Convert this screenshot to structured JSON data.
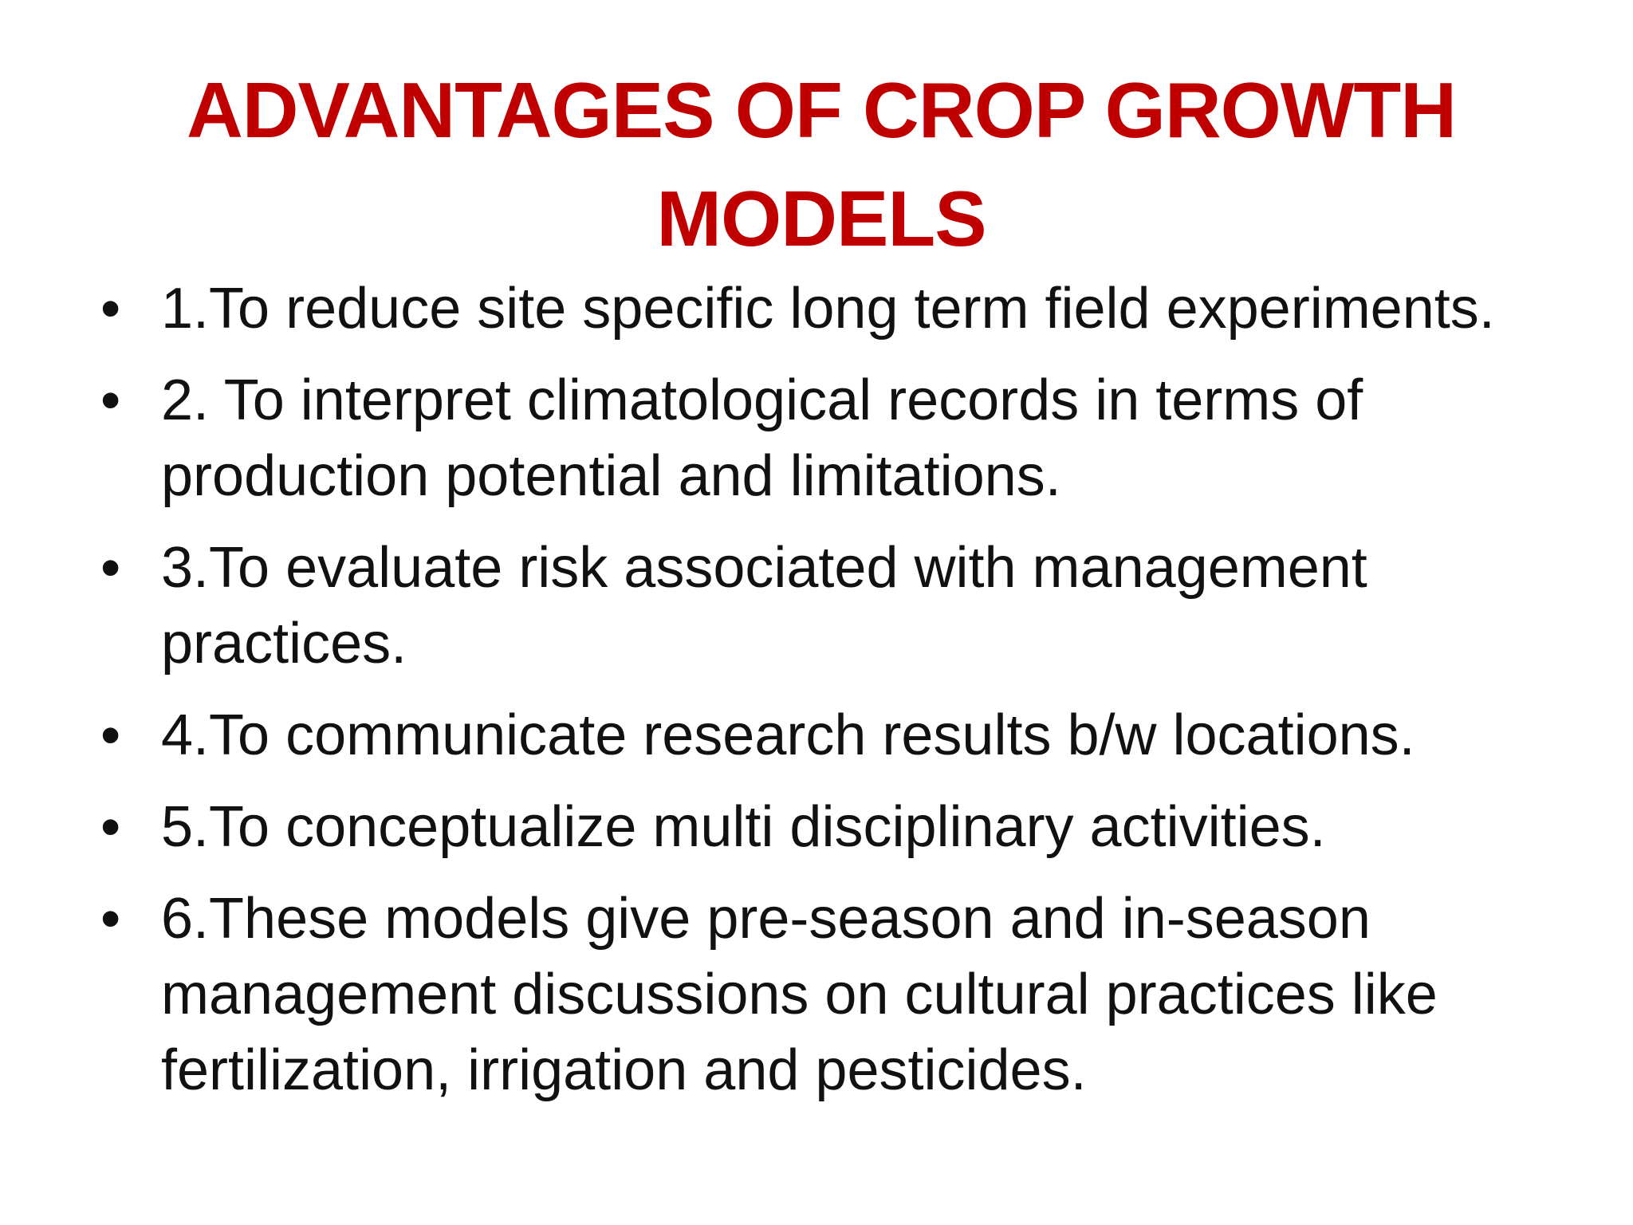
{
  "slide": {
    "title": "ADVANTAGES OF CROP GROWTH MODELS",
    "title_color": "#c00000",
    "bullet_glyph": "•",
    "items": [
      "1.To reduce site specific long term field experiments.",
      "2. To interpret climatological records in terms of production potential and limitations.",
      "3.To evaluate risk associated with management practices.",
      "4.To communicate research results b/w locations.",
      "5.To conceptualize multi disciplinary activities.",
      "6.These models give pre-season and in-season management discussions on cultural practices like fertilization, irrigation and pesticides."
    ]
  }
}
